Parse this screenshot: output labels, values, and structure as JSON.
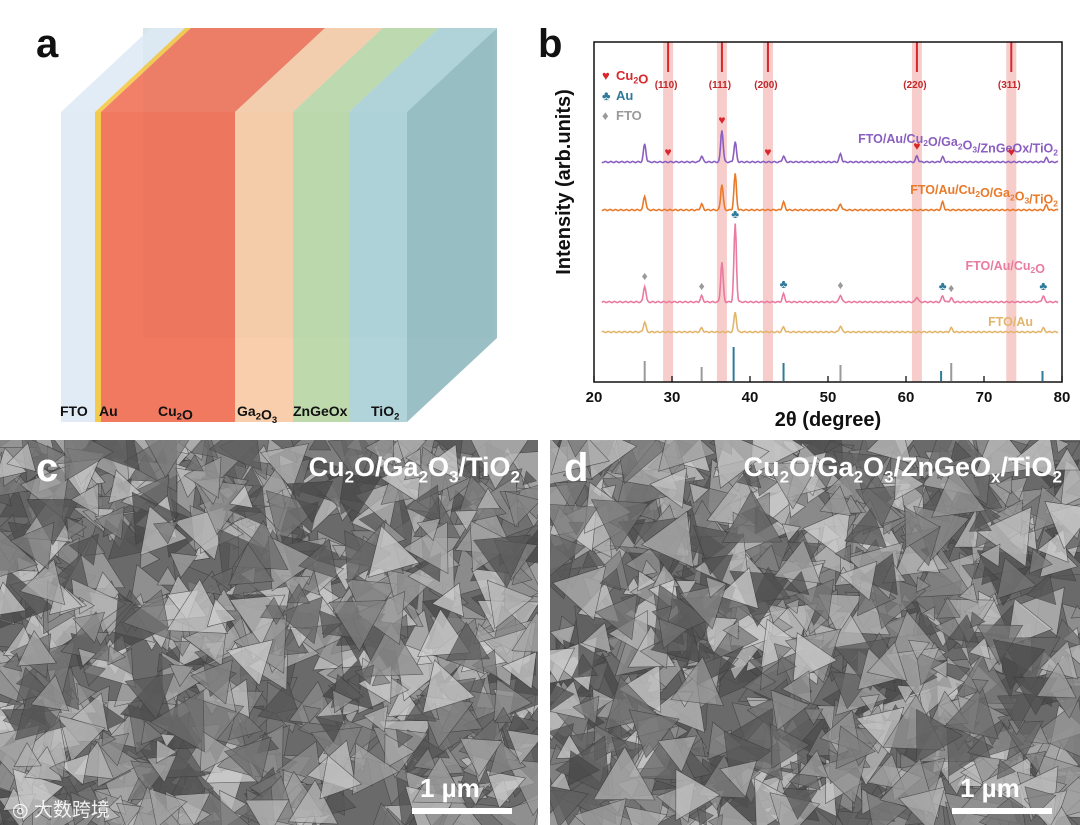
{
  "panels": {
    "a": {
      "letter": "a"
    },
    "b": {
      "letter": "b"
    },
    "c": {
      "letter": "c",
      "title": "Cu2O/Ga2O3/TiO2",
      "scale": "1 µm"
    },
    "d": {
      "letter": "d",
      "title": "Cu2O/Ga2O3/ZnGeOx/TiO2",
      "scale": "1 µm"
    }
  },
  "device_layers": [
    {
      "name": "FTO",
      "color": "#dde9f5"
    },
    {
      "name": "Au",
      "color": "#f3c43a"
    },
    {
      "name": "Cu2O",
      "color": "#f06a4f"
    },
    {
      "name": "Ga2O3",
      "color": "#f7c9a3"
    },
    {
      "name": "ZnGeOx",
      "color": "#b7d6a4"
    },
    {
      "name": "TiO2",
      "color": "#a9cfd6"
    }
  ],
  "chart_data": {
    "type": "line",
    "xlabel": "2θ (degree)",
    "ylabel": "Intensity (arb.units)",
    "xlim": [
      20,
      80
    ],
    "xticks": [
      20,
      30,
      40,
      50,
      60,
      70,
      80
    ],
    "legend": [
      {
        "symbol": "♥",
        "label": "Cu2O",
        "color": "#d9262b"
      },
      {
        "symbol": "♣",
        "label": "Au",
        "color": "#2f7a9a"
      },
      {
        "symbol": "♦",
        "label": "FTO",
        "color": "#9a9a9a"
      }
    ],
    "reference_lines": [
      {
        "x": 29.5,
        "label": "(110)"
      },
      {
        "x": 36.4,
        "label": "(111)"
      },
      {
        "x": 42.3,
        "label": "(200)"
      },
      {
        "x": 61.4,
        "label": "(220)"
      },
      {
        "x": 73.5,
        "label": "(311)"
      }
    ],
    "series": [
      {
        "name": "FTO/Au/Cu2O/Ga2O3/ZnGeOx/TiO2",
        "color": "#8a5fc0",
        "peaks": [
          [
            26.5,
            18
          ],
          [
            33.8,
            6
          ],
          [
            36.4,
            32
          ],
          [
            38.1,
            20
          ],
          [
            44.3,
            6
          ],
          [
            51.6,
            8
          ],
          [
            61.4,
            6
          ],
          [
            64.7,
            5
          ],
          [
            78.0,
            4
          ]
        ]
      },
      {
        "name": "FTO/Au/Cu2O/Ga2O3/TiO2",
        "color": "#e87a2a",
        "peaks": [
          [
            26.5,
            14
          ],
          [
            33.8,
            6
          ],
          [
            36.4,
            26
          ],
          [
            38.1,
            36
          ],
          [
            44.3,
            8
          ],
          [
            51.6,
            6
          ],
          [
            64.7,
            8
          ],
          [
            78.0,
            5
          ]
        ]
      },
      {
        "name": "FTO/Au/Cu2O",
        "color": "#e97aa0",
        "peaks": [
          [
            26.5,
            16
          ],
          [
            33.8,
            6
          ],
          [
            36.4,
            40
          ],
          [
            38.1,
            78
          ],
          [
            44.3,
            8
          ],
          [
            51.6,
            7
          ],
          [
            61.4,
            5
          ],
          [
            64.7,
            6
          ],
          [
            65.8,
            4
          ],
          [
            77.6,
            6
          ]
        ]
      },
      {
        "name": "FTO/Au",
        "color": "#e2b56c",
        "peaks": [
          [
            26.5,
            10
          ],
          [
            33.8,
            4
          ],
          [
            38.1,
            20
          ],
          [
            44.3,
            5
          ],
          [
            51.6,
            6
          ],
          [
            65.8,
            4
          ],
          [
            77.6,
            4
          ]
        ]
      }
    ],
    "markers": [
      {
        "series": 0,
        "symbol": "♥",
        "x": [
          29.5,
          36.4,
          42.3,
          61.4,
          73.5
        ]
      },
      {
        "series": 2,
        "symbol": "♦",
        "x": [
          26.5,
          33.8,
          51.6,
          65.8
        ]
      },
      {
        "series": 2,
        "symbol": "♣",
        "x": [
          38.1,
          44.3,
          64.7,
          77.6
        ]
      }
    ],
    "reference_sticks": [
      {
        "x": 26.5,
        "color": "#9a9a9a",
        "h": 20
      },
      {
        "x": 33.8,
        "color": "#9a9a9a",
        "h": 14
      },
      {
        "x": 37.9,
        "color": "#2f7a9a",
        "h": 34
      },
      {
        "x": 44.3,
        "color": "#2f7a9a",
        "h": 18
      },
      {
        "x": 51.6,
        "color": "#9a9a9a",
        "h": 16
      },
      {
        "x": 64.5,
        "color": "#2f7a9a",
        "h": 10
      },
      {
        "x": 65.8,
        "color": "#9a9a9a",
        "h": 18
      },
      {
        "x": 77.5,
        "color": "#2f7a9a",
        "h": 10
      }
    ]
  },
  "watermark": "大数跨境"
}
